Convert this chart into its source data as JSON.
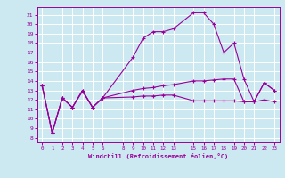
{
  "xlabel": "Windchill (Refroidissement éolien,°C)",
  "bg_color": "#cce8f0",
  "grid_color": "#ffffff",
  "line_color": "#990099",
  "xlim": [
    -0.5,
    23.5
  ],
  "ylim": [
    7.5,
    21.8
  ],
  "yticks": [
    8,
    9,
    10,
    11,
    12,
    13,
    14,
    15,
    16,
    17,
    18,
    19,
    20,
    21
  ],
  "xticks": [
    0,
    1,
    2,
    3,
    4,
    5,
    6,
    8,
    9,
    10,
    11,
    12,
    13,
    15,
    16,
    17,
    18,
    19,
    20,
    21,
    22,
    23
  ],
  "series1_x": [
    0,
    1,
    2,
    3,
    4,
    5,
    6,
    9,
    10,
    11,
    12,
    13,
    15,
    16,
    17,
    18,
    19,
    20,
    21,
    22,
    23
  ],
  "series1_y": [
    13.5,
    8.5,
    12.2,
    11.2,
    12.9,
    11.2,
    12.2,
    16.5,
    18.5,
    19.2,
    19.2,
    19.5,
    21.2,
    21.2,
    20.0,
    17.0,
    18.0,
    14.2,
    11.8,
    13.8,
    13.0
  ],
  "series2_x": [
    0,
    1,
    2,
    3,
    4,
    5,
    6,
    9,
    10,
    11,
    12,
    13,
    15,
    16,
    17,
    18,
    19,
    20,
    21,
    22,
    23
  ],
  "series2_y": [
    13.5,
    8.5,
    12.2,
    11.2,
    13.0,
    11.2,
    12.2,
    13.0,
    13.2,
    13.3,
    13.5,
    13.6,
    14.0,
    14.0,
    14.1,
    14.2,
    14.2,
    11.8,
    11.8,
    13.8,
    13.0
  ],
  "series3_x": [
    0,
    1,
    2,
    3,
    4,
    5,
    6,
    9,
    10,
    11,
    12,
    13,
    15,
    16,
    17,
    18,
    19,
    20,
    21,
    22,
    23
  ],
  "series3_y": [
    13.5,
    8.5,
    12.2,
    11.2,
    13.0,
    11.2,
    12.2,
    12.3,
    12.4,
    12.4,
    12.5,
    12.5,
    11.9,
    11.9,
    11.9,
    11.9,
    11.9,
    11.8,
    11.8,
    12.0,
    11.8
  ]
}
